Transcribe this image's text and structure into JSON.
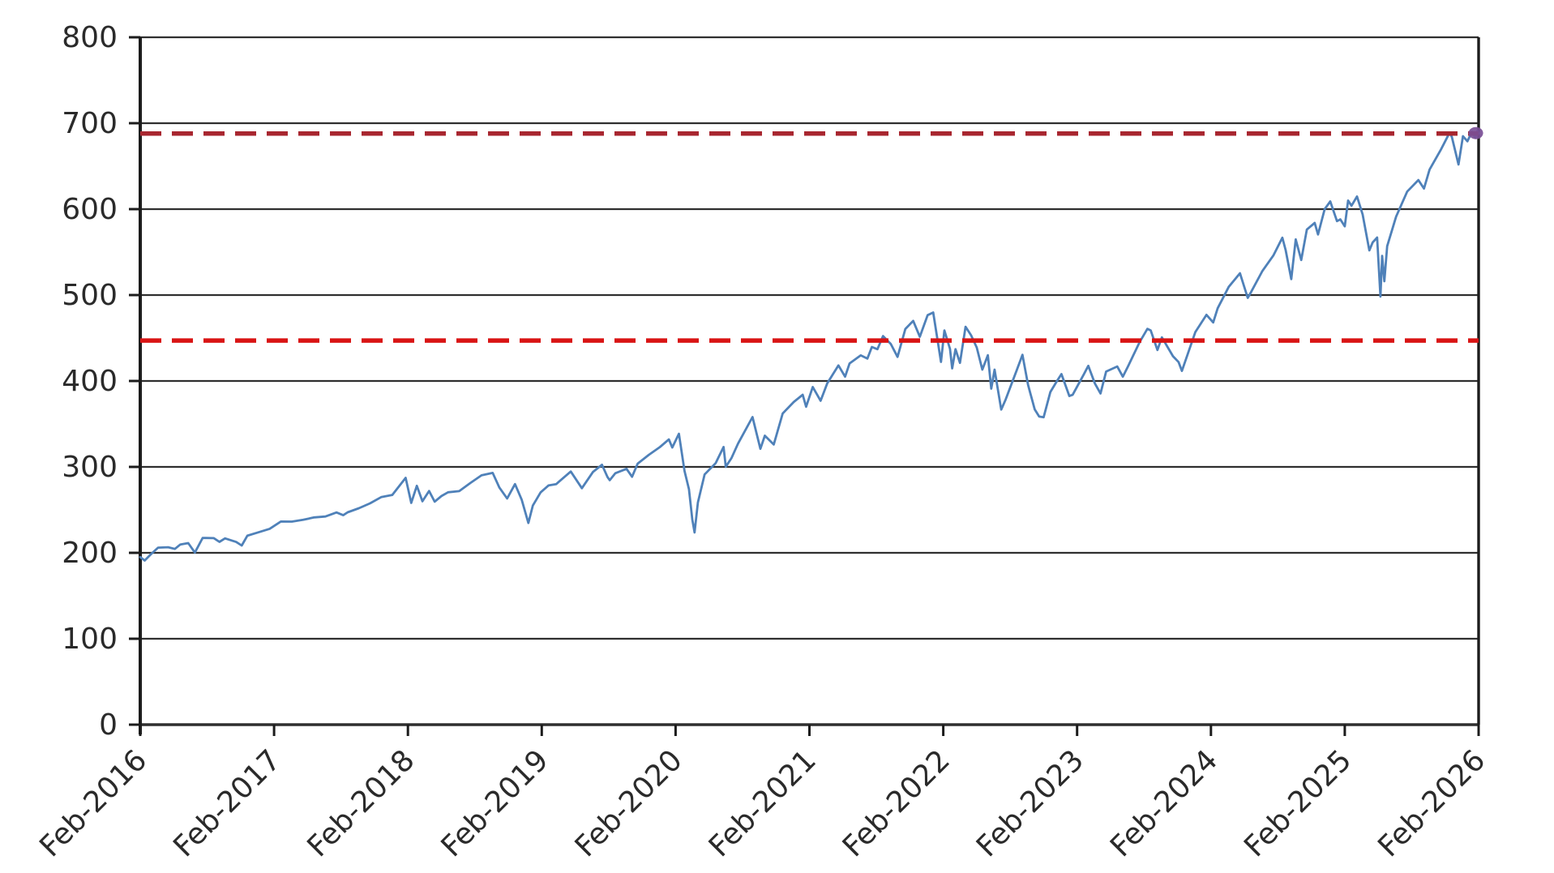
{
  "chart_data": {
    "type": "line",
    "title": "",
    "xlabel": "",
    "ylabel": "",
    "grid": true,
    "x_axis": {
      "tick_labels": [
        "Feb-2016",
        "Feb-2017",
        "Feb-2018",
        "Feb-2019",
        "Feb-2020",
        "Feb-2021",
        "Feb-2022",
        "Feb-2023",
        "Feb-2024",
        "Feb-2025",
        "Feb-2026"
      ],
      "rotation_deg": -45,
      "range_months": [
        0,
        120
      ]
    },
    "y_axis": {
      "tick_labels": [
        "0",
        "100",
        "200",
        "300",
        "400",
        "500",
        "600",
        "700",
        "800"
      ],
      "ticks": [
        0,
        100,
        200,
        300,
        400,
        500,
        600,
        700,
        800
      ],
      "range": [
        0,
        800
      ]
    },
    "series": [
      {
        "name": "index-price",
        "color": "#4f81b9",
        "stroke_width": 2.8,
        "points": [
          [
            0,
            195
          ],
          [
            0.4,
            191
          ],
          [
            1,
            199
          ],
          [
            1.6,
            206
          ],
          [
            2.5,
            206.5
          ],
          [
            3.1,
            204.5
          ],
          [
            3.6,
            209.7
          ],
          [
            4.3,
            211.3
          ],
          [
            4.9,
            200.3
          ],
          [
            5.6,
            217.4
          ],
          [
            6.6,
            217.1
          ],
          [
            7.1,
            212.7
          ],
          [
            7.6,
            216.8
          ],
          [
            8.6,
            212.6
          ],
          [
            9.1,
            208.5
          ],
          [
            9.6,
            219.9
          ],
          [
            10.6,
            223.9
          ],
          [
            11.6,
            227.9
          ],
          [
            12.6,
            236.4
          ],
          [
            13.6,
            236.3
          ],
          [
            14.6,
            238.4
          ],
          [
            15.6,
            241.2
          ],
          [
            16.6,
            242.3
          ],
          [
            17.6,
            247
          ],
          [
            18.2,
            243.8
          ],
          [
            18.6,
            247.2
          ],
          [
            19.6,
            251.9
          ],
          [
            20.6,
            257.5
          ],
          [
            21.6,
            264.8
          ],
          [
            22.6,
            267.4
          ],
          [
            23.8,
            287.3
          ],
          [
            24.3,
            258.1
          ],
          [
            24.8,
            278
          ],
          [
            25.3,
            260
          ],
          [
            25.9,
            272
          ],
          [
            26.4,
            259.5
          ],
          [
            27,
            266
          ],
          [
            27.6,
            270.5
          ],
          [
            28.6,
            271.8
          ],
          [
            29.6,
            281.2
          ],
          [
            30.6,
            290.2
          ],
          [
            31.6,
            293
          ],
          [
            32.2,
            276
          ],
          [
            32.9,
            263.2
          ],
          [
            33.6,
            280
          ],
          [
            34.2,
            262
          ],
          [
            34.8,
            234.7
          ],
          [
            35.2,
            255
          ],
          [
            35.9,
            270.4
          ],
          [
            36.6,
            278.4
          ],
          [
            37.3,
            280
          ],
          [
            37.6,
            283.4
          ],
          [
            38.6,
            294.6
          ],
          [
            39.6,
            275.2
          ],
          [
            40.6,
            294.2
          ],
          [
            41.4,
            302.5
          ],
          [
            41.9,
            288
          ],
          [
            42.1,
            284.5
          ],
          [
            42.6,
            292.6
          ],
          [
            43.6,
            297.7
          ],
          [
            44.1,
            288.5
          ],
          [
            44.6,
            303.8
          ],
          [
            45.6,
            314.1
          ],
          [
            46.6,
            323.1
          ],
          [
            47.4,
            332
          ],
          [
            47.7,
            322.5
          ],
          [
            48.3,
            338.6
          ],
          [
            48.8,
            295.4
          ],
          [
            49.2,
            274
          ],
          [
            49.5,
            239
          ],
          [
            49.7,
            223.7
          ],
          [
            50,
            258.5
          ],
          [
            50.6,
            291.2
          ],
          [
            51.6,
            304.4
          ],
          [
            52.3,
            323.2
          ],
          [
            52.5,
            300.2
          ],
          [
            53,
            310
          ],
          [
            53.6,
            327.1
          ],
          [
            54.9,
            358
          ],
          [
            55.6,
            321
          ],
          [
            56,
            336.3
          ],
          [
            56.8,
            326
          ],
          [
            57.6,
            362.2
          ],
          [
            58.6,
            375.6
          ],
          [
            59.4,
            384
          ],
          [
            59.7,
            370
          ],
          [
            60.3,
            393
          ],
          [
            61,
            377
          ],
          [
            61.6,
            397.3
          ],
          [
            62.6,
            418.1
          ],
          [
            63.2,
            405
          ],
          [
            63.6,
            420.4
          ],
          [
            64.6,
            429.8
          ],
          [
            65.2,
            426
          ],
          [
            65.6,
            439.5
          ],
          [
            66.1,
            437
          ],
          [
            66.6,
            452.3
          ],
          [
            67.3,
            443
          ],
          [
            67.9,
            428
          ],
          [
            68.6,
            460.5
          ],
          [
            69.3,
            470
          ],
          [
            69.9,
            451.5
          ],
          [
            70.6,
            476.6
          ],
          [
            71.1,
            479.7
          ],
          [
            71.8,
            422.2
          ],
          [
            72.1,
            458.9
          ],
          [
            72.6,
            437.4
          ],
          [
            72.8,
            414.6
          ],
          [
            73.1,
            437
          ],
          [
            73.5,
            421
          ],
          [
            74,
            463.1
          ],
          [
            74.5,
            453
          ],
          [
            75,
            439
          ],
          [
            75.5,
            413.2
          ],
          [
            76,
            430
          ],
          [
            76.3,
            391
          ],
          [
            76.6,
            413.2
          ],
          [
            77.2,
            366.7
          ],
          [
            77.6,
            378.5
          ],
          [
            78.6,
            413
          ],
          [
            79.1,
            430.5
          ],
          [
            79.6,
            395.5
          ],
          [
            80.2,
            367
          ],
          [
            80.6,
            358.6
          ],
          [
            81,
            357.7
          ],
          [
            81.6,
            387.2
          ],
          [
            82.2,
            400
          ],
          [
            82.6,
            408
          ],
          [
            83.3,
            382.5
          ],
          [
            83.6,
            383.9
          ],
          [
            84.6,
            407.7
          ],
          [
            85,
            417.6
          ],
          [
            85.6,
            397
          ],
          [
            86.1,
            385.5
          ],
          [
            86.6,
            410.9
          ],
          [
            87.6,
            416.9
          ],
          [
            88.1,
            405
          ],
          [
            88.6,
            417.9
          ],
          [
            89.6,
            445
          ],
          [
            90.3,
            460.7
          ],
          [
            90.6,
            458.9
          ],
          [
            91.2,
            436
          ],
          [
            91.6,
            450.8
          ],
          [
            92.6,
            428.8
          ],
          [
            93.1,
            422
          ],
          [
            93.4,
            411.7
          ],
          [
            93.6,
            419.4
          ],
          [
            94.6,
            456.8
          ],
          [
            95.6,
            477
          ],
          [
            96.2,
            468.1
          ],
          [
            96.6,
            484.6
          ],
          [
            97.6,
            509.6
          ],
          [
            98.6,
            525.4
          ],
          [
            99.3,
            496.7
          ],
          [
            99.6,
            503.5
          ],
          [
            100.6,
            527.7
          ],
          [
            101.6,
            546
          ],
          [
            102.4,
            566.8
          ],
          [
            102.7,
            552.2
          ],
          [
            103.2,
            518.6
          ],
          [
            103.6,
            564.8
          ],
          [
            104.1,
            540.8
          ],
          [
            104.6,
            576.2
          ],
          [
            105.3,
            584
          ],
          [
            105.6,
            570.5
          ],
          [
            106.2,
            600
          ],
          [
            106.7,
            609
          ],
          [
            107.3,
            586
          ],
          [
            107.6,
            588.1
          ],
          [
            108,
            580
          ],
          [
            108.3,
            610
          ],
          [
            108.6,
            604
          ],
          [
            109.1,
            614.7
          ],
          [
            109.6,
            594
          ],
          [
            110.2,
            552
          ],
          [
            110.5,
            561.2
          ],
          [
            110.9,
            567
          ],
          [
            111.2,
            498.3
          ],
          [
            111.35,
            545.7
          ],
          [
            111.55,
            516
          ],
          [
            111.8,
            556.9
          ],
          [
            112.6,
            591.2
          ],
          [
            113.6,
            620.5
          ],
          [
            114.6,
            633.9
          ],
          [
            115.1,
            624
          ],
          [
            115.6,
            646
          ],
          [
            116.6,
            668.8
          ],
          [
            117.4,
            689
          ],
          [
            117.6,
            684
          ],
          [
            118.2,
            652
          ],
          [
            118.6,
            684.9
          ],
          [
            119,
            679
          ],
          [
            119.4,
            690
          ],
          [
            119.7,
            683
          ],
          [
            119.9,
            691
          ],
          [
            120,
            688
          ]
        ]
      }
    ],
    "reference_lines": [
      {
        "name": "lower-reference",
        "value": 447,
        "color": "#d91414",
        "style": "dashed"
      },
      {
        "name": "upper-reference",
        "value": 688,
        "color": "#a8262f",
        "style": "dashed"
      }
    ],
    "end_marker": {
      "t": 119.75,
      "value": 688.5,
      "color": "#7a4e96"
    },
    "legend": null
  },
  "style": {
    "background": "#ffffff",
    "grid_color": "#2f2f2f",
    "axis_color": "#1c1c1c",
    "label_color": "#2a2a2a"
  }
}
